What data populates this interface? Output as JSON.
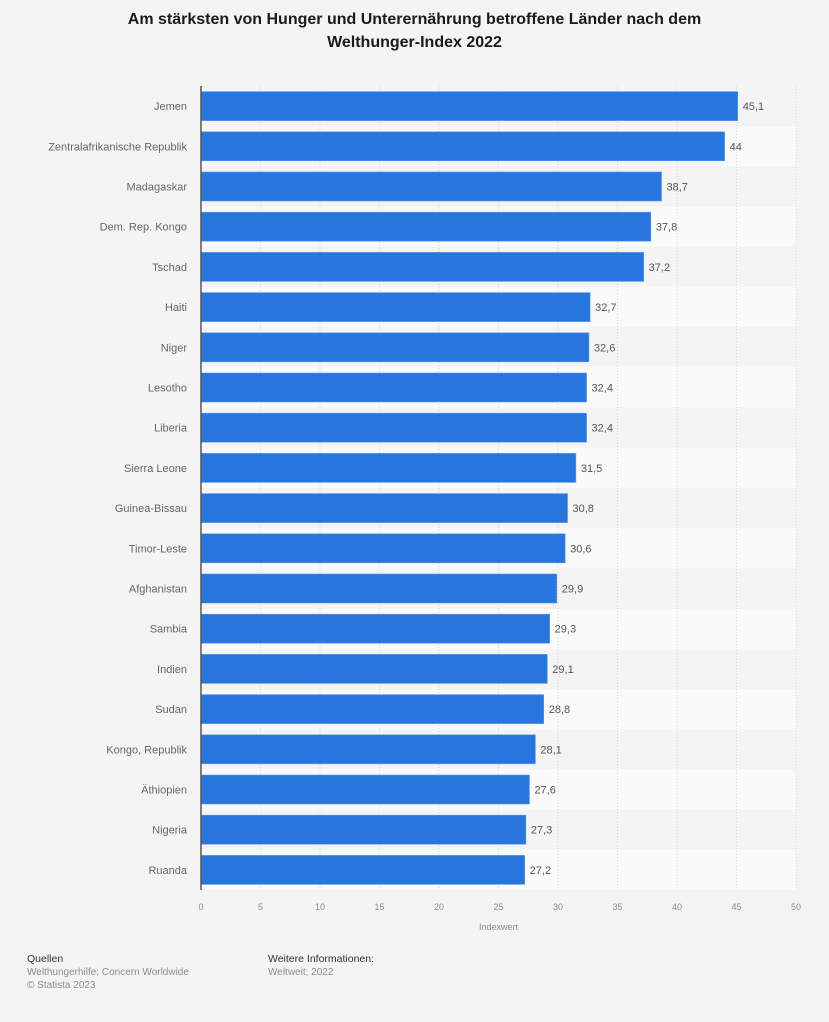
{
  "chart_data": {
    "type": "bar",
    "orientation": "horizontal",
    "title": "Am stärksten von Hunger und Unterernährung betroffene Länder nach dem Welthunger-Index 2022",
    "categories": [
      "Jemen",
      "Zentralafrikanische Republik",
      "Madagaskar",
      "Dem. Rep. Kongo",
      "Tschad",
      "Haiti",
      "Niger",
      "Lesotho",
      "Liberia",
      "Sierra Leone",
      "Guinea-Bissau",
      "Timor-Leste",
      "Afghanistan",
      "Sambia",
      "Indien",
      "Sudan",
      "Kongo, Republik",
      "Äthiopien",
      "Nigeria",
      "Ruanda"
    ],
    "values": [
      45.1,
      44,
      38.7,
      37.8,
      37.2,
      32.7,
      32.6,
      32.4,
      32.4,
      31.5,
      30.8,
      30.6,
      29.9,
      29.3,
      29.1,
      28.8,
      28.1,
      27.6,
      27.3,
      27.2
    ],
    "value_labels": [
      "45,1",
      "44",
      "38,7",
      "37,8",
      "37,2",
      "32,7",
      "32,6",
      "32,4",
      "32,4",
      "31,5",
      "30,8",
      "30,6",
      "29,9",
      "29,3",
      "29,1",
      "28,8",
      "28,1",
      "27,6",
      "27,3",
      "27,2"
    ],
    "xlabel": "Indexwert",
    "ylabel": "",
    "xlim": [
      0,
      50
    ],
    "xticks": [
      0,
      5,
      10,
      15,
      20,
      25,
      30,
      35,
      40,
      45,
      50
    ],
    "grid": true,
    "bar_color": "#2876dd"
  },
  "title_line1": "Am stärksten von Hunger und Unterernährung betroffene Länder nach dem",
  "title_line2": "Welthunger-Index 2022",
  "footer": {
    "sources_heading": "Quellen",
    "sources_text": "Welthungerhilfe; Concern Worldwide",
    "copyright": "© Statista 2023",
    "info_heading": "Weitere Informationen:",
    "info_text": "Weltweit; 2022"
  }
}
